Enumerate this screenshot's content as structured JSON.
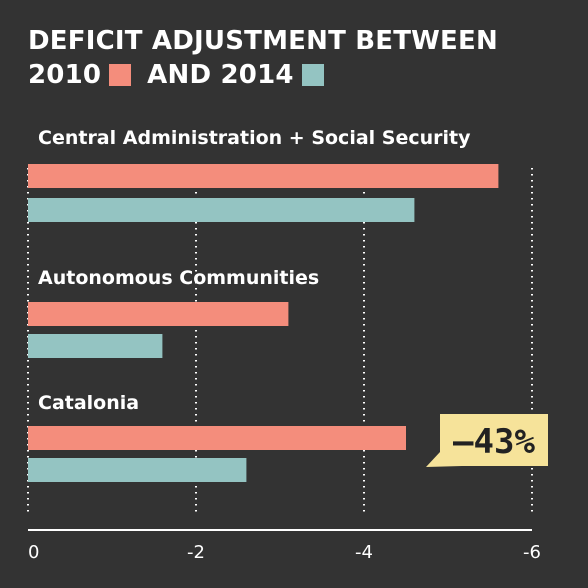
{
  "title": {
    "line1": "DEFICIT ADJUSTMENT BETWEEN",
    "year1": "2010",
    "and_year2": "AND 2014"
  },
  "colors": {
    "y2010": "#f48d7c",
    "y2014": "#94c4c2",
    "background": "#333333",
    "callout_bg": "#f6e39a"
  },
  "chart_data": {
    "type": "bar",
    "orientation": "horizontal",
    "categories": [
      "Central Administration + Social Security",
      "Autonomous Communities",
      "Catalonia"
    ],
    "series": [
      {
        "name": "2010",
        "values": [
          -5.6,
          -3.1,
          -4.5
        ]
      },
      {
        "name": "2014",
        "values": [
          -4.6,
          -1.6,
          -2.6
        ]
      }
    ],
    "xlim": [
      0,
      -6
    ],
    "xticks": [
      0,
      -2,
      -4,
      -6
    ],
    "xtick_labels": [
      "0",
      "-2",
      "-4",
      "-6"
    ],
    "grid": "vertical-dotted",
    "annotation": {
      "text": "–43%",
      "category": "Catalonia"
    }
  }
}
